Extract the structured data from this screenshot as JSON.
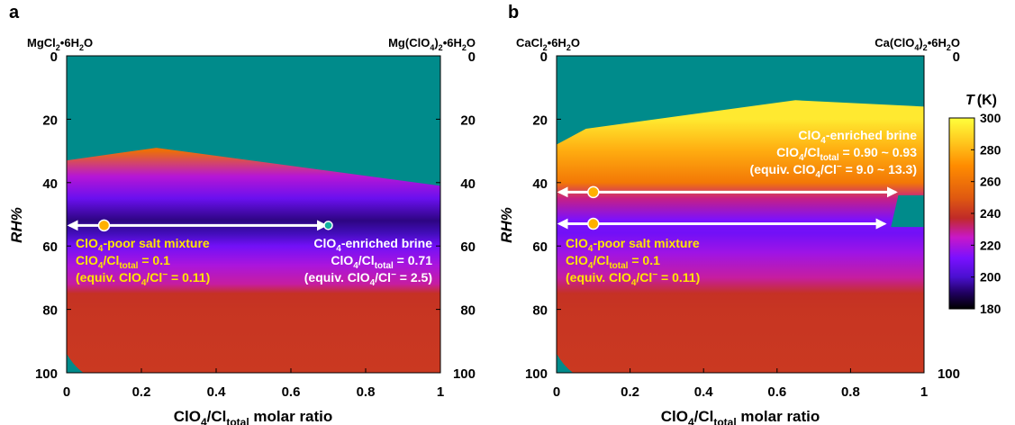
{
  "colors": {
    "teal": "#008b8b",
    "yellow_text": "#ffe600",
    "white_text": "#ffffff",
    "arrow": "#ffffff",
    "marker_orange": "#ffb000",
    "marker_teal": "#14b2a0"
  },
  "colorbar": {
    "title_italic": "T",
    "title_unit": "(K)",
    "ticks": [
      "300",
      "280",
      "260",
      "240",
      "220",
      "200",
      "180"
    ],
    "range_K": [
      180,
      300
    ],
    "stops": [
      {
        "K": 300,
        "color": "#ffff3c"
      },
      {
        "K": 285,
        "color": "#ffc81e"
      },
      {
        "K": 270,
        "color": "#ff8c00"
      },
      {
        "K": 250,
        "color": "#e05a10"
      },
      {
        "K": 237,
        "color": "#c02a28"
      },
      {
        "K": 225,
        "color": "#c818c8"
      },
      {
        "K": 212,
        "color": "#7a10ff"
      },
      {
        "K": 200,
        "color": "#4a10d0"
      },
      {
        "K": 190,
        "color": "#200060"
      },
      {
        "K": 180,
        "color": "#000000"
      }
    ]
  },
  "chart_data": [
    {
      "type": "heatmap",
      "panel_label": "a",
      "left_salt": [
        "MgCl",
        "2",
        "•6H",
        "2",
        "O"
      ],
      "right_salt": [
        "Mg(ClO",
        "4",
        ")",
        "2",
        "•6H",
        "2",
        "O"
      ],
      "xlabel": [
        "ClO",
        "4",
        "/Cl",
        "total",
        " molar ratio"
      ],
      "ylabel": "RH%",
      "xlim": [
        0,
        1
      ],
      "ylim": [
        0,
        100
      ],
      "y_reversed": true,
      "x_ticks": [
        "0",
        "0.2",
        "0.4",
        "0.6",
        "0.8",
        "1"
      ],
      "y_ticks_left": [
        "0",
        "20",
        "40",
        "60",
        "80",
        "100"
      ],
      "y_ticks_right": [
        "0",
        "20",
        "40",
        "60",
        "80",
        "100"
      ],
      "teal_boundary": {
        "x": [
          0,
          0.24,
          1
        ],
        "rh": [
          33,
          29,
          41
        ]
      },
      "colormap_bands_rh_vs_K": {
        "rh": [
          30,
          38,
          45,
          52,
          56,
          60,
          66,
          72,
          75,
          80,
          100
        ],
        "K": [
          258,
          222,
          208,
          193,
          198,
          210,
          220,
          228,
          239,
          240,
          241
        ]
      },
      "arrows": [
        {
          "x_from": 0,
          "x_to": 0.7,
          "rh": 53.5
        }
      ],
      "markers": [
        {
          "x": 0.1,
          "rh": 53.5,
          "kind": "orange"
        },
        {
          "x": 0.7,
          "rh": 53.5,
          "kind": "teal"
        }
      ],
      "annotations": {
        "poor_title": "ClO",
        "poor_title_sub": "4",
        "poor_title_rest": "-poor salt mixture",
        "poor_ratio_pre": "ClO",
        "poor_ratio_sub1": "4",
        "poor_ratio_mid": "/Cl",
        "poor_ratio_sub2": "total",
        "poor_ratio_val": " = 0.1",
        "poor_equiv_pre": "(equiv. ClO",
        "poor_equiv_sub": "4",
        "poor_equiv_mid": "/Cl",
        "poor_equiv_sup": "−",
        "poor_equiv_val": " = 0.11)",
        "rich_title": "ClO",
        "rich_title_sub": "4",
        "rich_title_rest": "-enriched brine",
        "rich_ratio_pre": "ClO",
        "rich_ratio_sub1": "4",
        "rich_ratio_mid": "/Cl",
        "rich_ratio_sub2": "total",
        "rich_ratio_val": " = 0.71",
        "rich_equiv_pre": "(equiv. ClO",
        "rich_equiv_sub": "4",
        "rich_equiv_mid": "/Cl",
        "rich_equiv_sup": "−",
        "rich_equiv_val": " = 2.5)"
      }
    },
    {
      "type": "heatmap",
      "panel_label": "b",
      "left_salt": [
        "CaCl",
        "2",
        "•6H",
        "2",
        "O"
      ],
      "right_salt": [
        "Ca(ClO",
        "4",
        ")",
        "2",
        "•6H",
        "2",
        "O"
      ],
      "xlabel": [
        "ClO",
        "4",
        "/Cl",
        "total",
        " molar ratio"
      ],
      "ylabel": "RH%",
      "xlim": [
        0,
        1
      ],
      "ylim": [
        0,
        100
      ],
      "y_reversed": true,
      "x_ticks": [
        "0",
        "0.2",
        "0.4",
        "0.6",
        "0.8",
        "1"
      ],
      "y_ticks_left": [
        "0",
        "20",
        "40",
        "60",
        "80",
        "100"
      ],
      "y_ticks_right": [
        "0",
        "100"
      ],
      "teal_boundary": {
        "x": [
          0,
          0.08,
          0.65,
          1
        ],
        "rh": [
          28,
          23,
          14,
          16
        ]
      },
      "teal_pocket": {
        "x": [
          0.93,
          1
        ],
        "rh": [
          44,
          54
        ]
      },
      "colormap_bands_rh_vs_K": {
        "rh": [
          20,
          30,
          40,
          45,
          52,
          56,
          62,
          70,
          75,
          80,
          100
        ],
        "K": [
          294,
          278,
          262,
          230,
          212,
          210,
          218,
          228,
          239,
          240,
          241
        ]
      },
      "arrows": [
        {
          "x_from": 0,
          "x_to": 0.93,
          "rh": 43
        },
        {
          "x_from": 0,
          "x_to": 0.9,
          "rh": 53
        }
      ],
      "markers": [
        {
          "x": 0.1,
          "rh": 43,
          "kind": "orange"
        },
        {
          "x": 0.1,
          "rh": 53,
          "kind": "orange"
        }
      ],
      "annotations": {
        "poor_title": "ClO",
        "poor_title_sub": "4",
        "poor_title_rest": "-poor salt mixture",
        "poor_ratio_pre": "ClO",
        "poor_ratio_sub1": "4",
        "poor_ratio_mid": "/Cl",
        "poor_ratio_sub2": "total",
        "poor_ratio_val": " = 0.1",
        "poor_equiv_pre": "(equiv. ClO",
        "poor_equiv_sub": "4",
        "poor_equiv_mid": "/Cl",
        "poor_equiv_sup": "−",
        "poor_equiv_val": " = 0.11)",
        "rich_title": "ClO",
        "rich_title_sub": "4",
        "rich_title_rest": "-enriched brine",
        "rich_ratio_pre": "ClO",
        "rich_ratio_sub1": "4",
        "rich_ratio_mid": "/Cl",
        "rich_ratio_sub2": "total",
        "rich_ratio_val": " = 0.90 ~ 0.93",
        "rich_equiv_pre": "(equiv. ClO",
        "rich_equiv_sub": "4",
        "rich_equiv_mid": "/Cl",
        "rich_equiv_sup": "−",
        "rich_equiv_val": " = 9.0 ~ 13.3)"
      }
    }
  ]
}
